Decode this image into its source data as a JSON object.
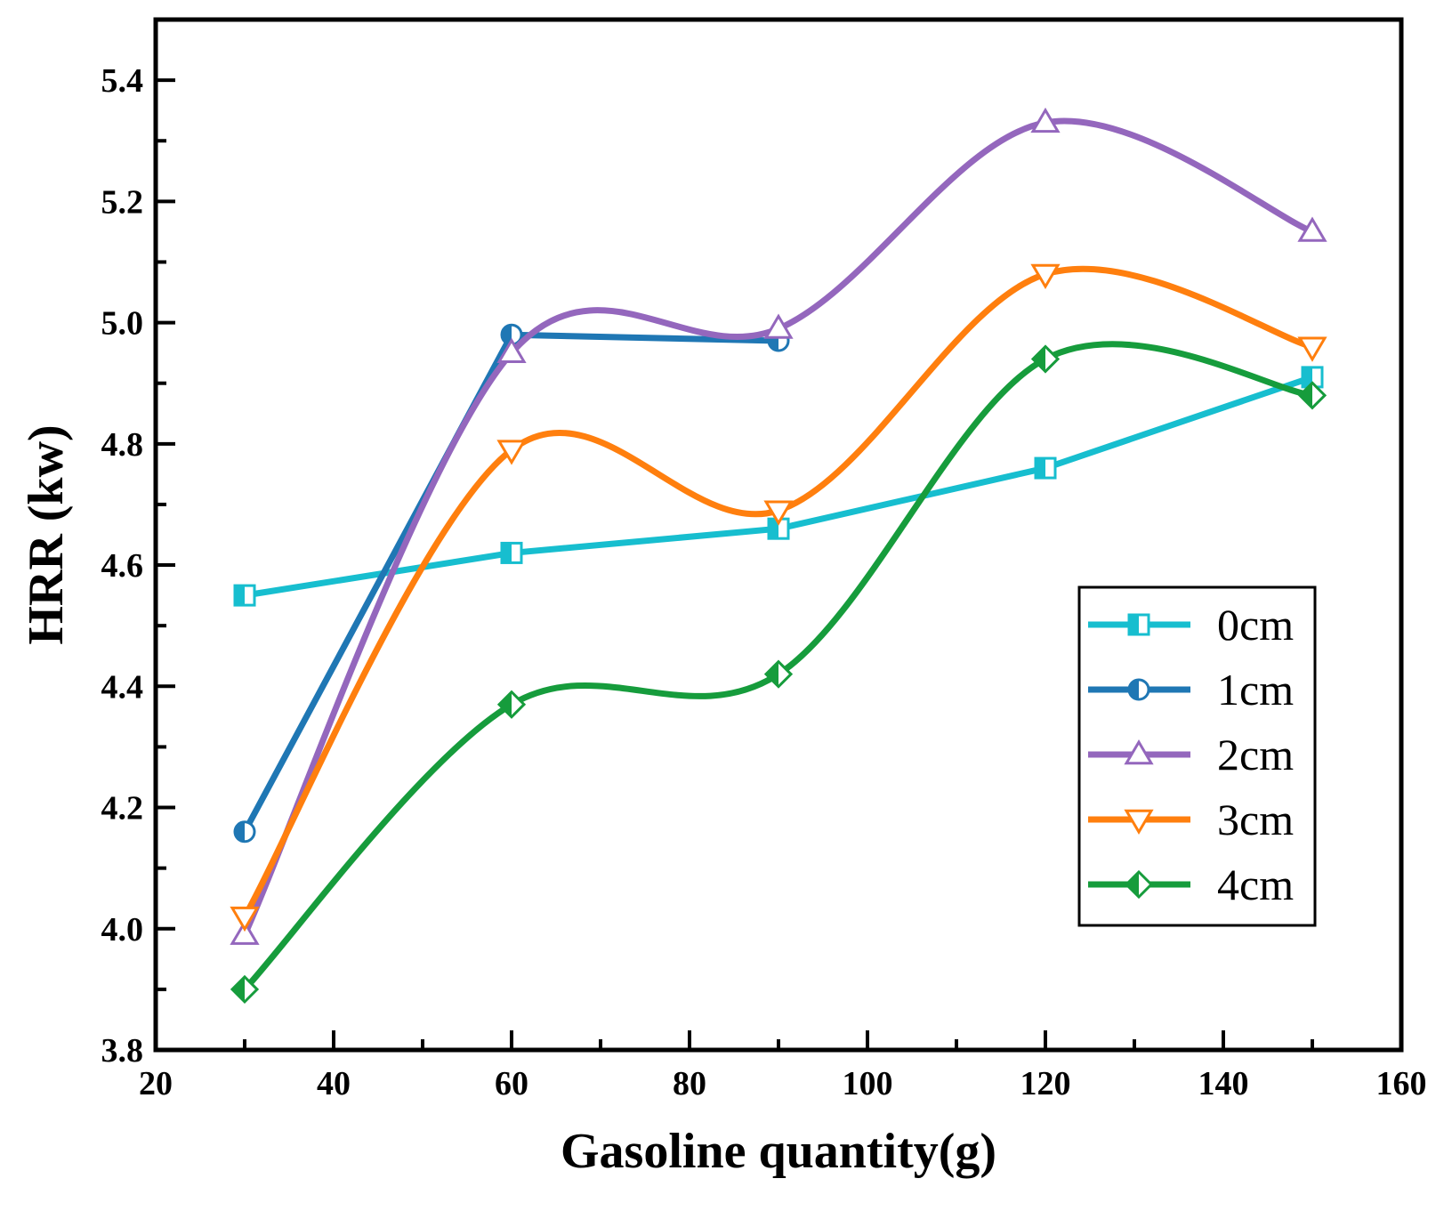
{
  "chart_data": {
    "type": "line",
    "title": "",
    "xlabel": "Gasoline quantity(g)",
    "ylabel": "HRR (kw)",
    "xlim": [
      20,
      160
    ],
    "ylim": [
      3.8,
      5.5
    ],
    "x_ticks": [
      20,
      40,
      60,
      80,
      100,
      120,
      140,
      160
    ],
    "y_ticks": [
      3.8,
      4.0,
      4.2,
      4.4,
      4.6,
      4.8,
      5.0,
      5.2,
      5.4
    ],
    "x_tick_labels": [
      "20",
      "40",
      "60",
      "80",
      "100",
      "120",
      "140",
      "160"
    ],
    "y_tick_labels": [
      "3.8",
      "4.0",
      "4.2",
      "4.4",
      "4.6",
      "4.8",
      "5.0",
      "5.2",
      "5.4"
    ],
    "grid": false,
    "legend_position": "lower-right",
    "series": [
      {
        "name": "0cm",
        "color": "#17becf",
        "marker": "square",
        "smooth": false,
        "x": [
          30,
          60,
          90,
          120,
          150
        ],
        "values": [
          4.55,
          4.62,
          4.66,
          4.76,
          4.91
        ]
      },
      {
        "name": "1cm",
        "color": "#1f77b4",
        "marker": "circle",
        "smooth": false,
        "x": [
          30,
          60,
          90
        ],
        "values": [
          4.16,
          4.98,
          4.97
        ]
      },
      {
        "name": "2cm",
        "color": "#9467bd",
        "marker": "triangle-up",
        "smooth": true,
        "x": [
          30,
          60,
          90,
          120,
          150
        ],
        "values": [
          3.99,
          4.95,
          4.99,
          5.33,
          5.15
        ]
      },
      {
        "name": "3cm",
        "color": "#ff7f0e",
        "marker": "triangle-down",
        "smooth": true,
        "x": [
          30,
          60,
          90,
          120,
          150
        ],
        "values": [
          4.02,
          4.79,
          4.69,
          5.08,
          4.96
        ]
      },
      {
        "name": "4cm",
        "color": "#169c3c",
        "marker": "diamond",
        "smooth": true,
        "x": [
          30,
          60,
          90,
          120,
          150
        ],
        "values": [
          3.9,
          4.37,
          4.42,
          4.94,
          4.88
        ]
      }
    ]
  }
}
